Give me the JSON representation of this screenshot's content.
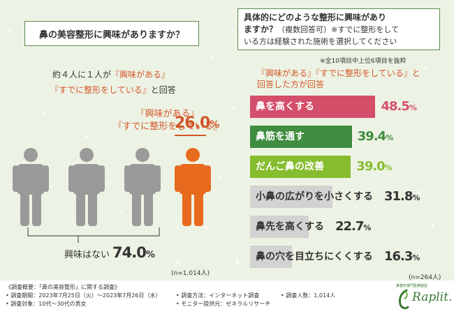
{
  "left_panel": {
    "question": "鼻の美容整形に興味がありますか？",
    "intro_line1_prefix": "約４人に１人が",
    "intro_line1_quote": "『興味がある』",
    "intro_line2_quote": "『すでに整形をしている』",
    "intro_line2_suffix": "と回答",
    "callout_line1": "『興味がある』",
    "callout_line2": "『すでに整形をしている』",
    "interested_value": "26.0",
    "pct_symbol": "%",
    "no_interest_label": "興味はない",
    "no_interest_value": "74.0",
    "sample": "(n=1,014人)"
  },
  "right_panel": {
    "question_line1": "具体的にどのような整形に興味があり",
    "question_line2_bold": "ますか？",
    "question_line2_rest": "（複数回答可）※すでに整形をして",
    "question_line3": "いる方は経験された施術を選択してください",
    "note": "※全10項目中上位6項目を抜粋",
    "caption_line1": "『興味がある』『すでに整形をしている』と",
    "caption_line2": "回答した方が回答",
    "sample": "(n=264人)",
    "pct_symbol": "%"
  },
  "chart_data": [
    {
      "type": "pie",
      "categories": [
        "『興味がある』『すでに整形をしている』",
        "興味はない"
      ],
      "values": [
        26.0,
        74.0
      ],
      "title": "鼻の美容整形に興味がありますか？",
      "unit": "%",
      "n": "1,014人"
    },
    {
      "type": "bar",
      "orientation": "horizontal",
      "categories": [
        "鼻を高くする",
        "鼻筋を通す",
        "だんご鼻の改善",
        "小鼻の広がりを小さくする",
        "鼻先を高くする",
        "鼻の穴を目立ちにくくする"
      ],
      "values": [
        48.5,
        39.4,
        39.0,
        31.8,
        22.7,
        16.3
      ],
      "labels": [
        "48.5",
        "39.4",
        "39.0",
        "31.8",
        "22.7",
        "16.3"
      ],
      "colors": [
        "#d44f6a",
        "#3f8d3f",
        "#86bd2e",
        "#d2d2d2",
        "#d2d2d2",
        "#d2d2d2"
      ],
      "label_colors": [
        "#ffffff",
        "#ffffff",
        "#ffffff",
        "#333333",
        "#333333",
        "#333333"
      ],
      "value_colors": [
        "#d44f6a",
        "#3f8d3f",
        "#86bd2e",
        "#333333",
        "#333333",
        "#333333"
      ],
      "unit": "%",
      "n": "264人"
    }
  ],
  "colors": {
    "accent": "#d2562a",
    "person_grey": "#9a9a9a",
    "person_orange": "#e86a1e",
    "border_green": "#5a8a4a",
    "background": "#edf3e4"
  },
  "icons": [
    "person-icon",
    "raplit-logo-icon"
  ],
  "footer": {
    "survey_title": "《調査概要：「鼻の美容整形」に関する調査》",
    "period": "• 調査期間：2023年7月25日（火）〜2023年7月26日（水）",
    "target": "• 調査対象：10代〜30代の男女",
    "method": "• 調査方法：インターネット調査",
    "provider": "• モニター提供元：ゼネラルリサーチ",
    "count": "• 調査人数：1,014人",
    "logo_small": "鼻整形専門医療施設",
    "logo_text": "Raplit."
  }
}
